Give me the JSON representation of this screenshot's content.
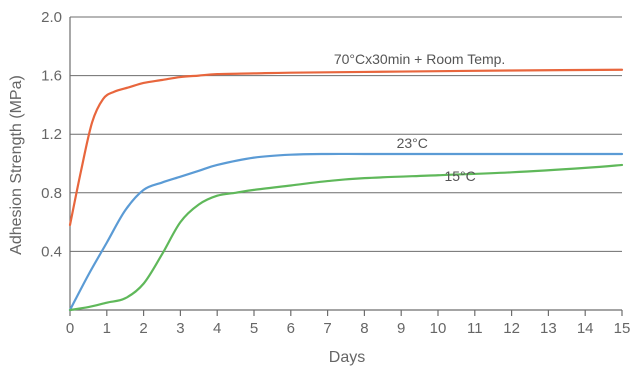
{
  "chart_data": {
    "type": "line",
    "xlabel": "Days",
    "ylabel": "Adhesion Strength (MPa)",
    "xlim": [
      0,
      15
    ],
    "ylim": [
      0,
      2.0
    ],
    "x_ticks": [
      0,
      1,
      2,
      3,
      4,
      5,
      6,
      7,
      8,
      9,
      10,
      11,
      12,
      13,
      14,
      15
    ],
    "y_ticks": [
      0.4,
      0.8,
      1.2,
      1.6,
      2.0
    ],
    "y_tick_labels": [
      "0.4",
      "0.8",
      "1.2",
      "1.6",
      "2.0"
    ],
    "grid": "horizontal",
    "series": [
      {
        "name": "70°Cx30min + Room Temp.",
        "color": "#e8663d",
        "x": [
          0,
          0.3,
          0.6,
          0.9,
          1.2,
          1.6,
          2,
          2.5,
          3,
          3.5,
          4,
          5,
          6,
          8,
          10,
          12,
          15
        ],
        "y": [
          0.58,
          0.95,
          1.28,
          1.44,
          1.49,
          1.52,
          1.55,
          1.57,
          1.59,
          1.6,
          1.61,
          1.615,
          1.62,
          1.625,
          1.63,
          1.635,
          1.64
        ]
      },
      {
        "name": "23°C",
        "color": "#5b9bd5",
        "x": [
          0,
          0.5,
          1,
          1.5,
          2,
          2.5,
          3,
          3.5,
          4,
          5,
          6,
          7,
          8,
          10,
          12,
          15
        ],
        "y": [
          0.0,
          0.24,
          0.46,
          0.68,
          0.82,
          0.87,
          0.91,
          0.95,
          0.99,
          1.04,
          1.06,
          1.065,
          1.065,
          1.065,
          1.065,
          1.065
        ]
      },
      {
        "name": "15°C",
        "color": "#5fb85a",
        "x": [
          0,
          0.5,
          1,
          1.5,
          2,
          2.5,
          3,
          3.5,
          4,
          4.5,
          5,
          6,
          7,
          8,
          10,
          12,
          14,
          15
        ],
        "y": [
          0.0,
          0.02,
          0.05,
          0.08,
          0.18,
          0.38,
          0.6,
          0.72,
          0.78,
          0.8,
          0.82,
          0.85,
          0.88,
          0.9,
          0.92,
          0.94,
          0.97,
          0.99
        ]
      }
    ]
  }
}
